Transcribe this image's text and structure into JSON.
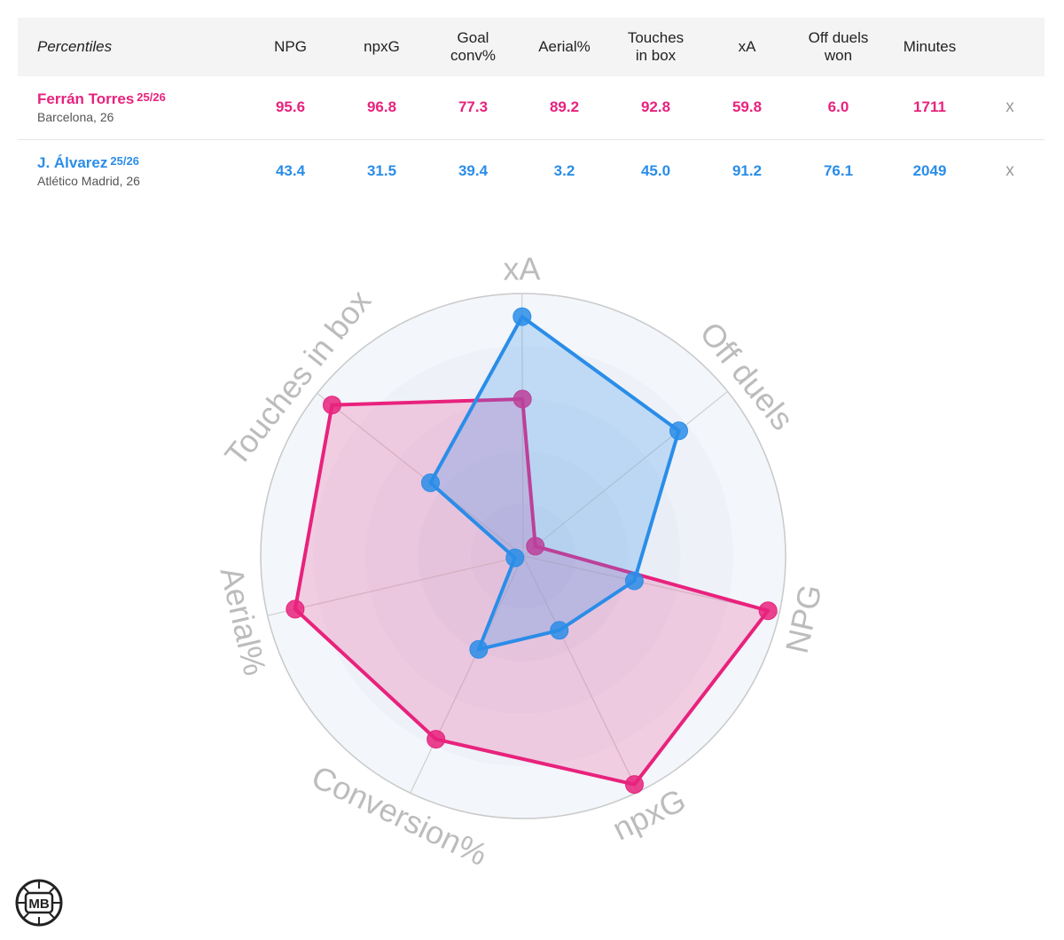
{
  "table": {
    "header_label": "Percentiles",
    "columns": [
      {
        "line1": "NPG",
        "line2": ""
      },
      {
        "line1": "npxG",
        "line2": ""
      },
      {
        "line1": "Goal",
        "line2": "conv%"
      },
      {
        "line1": "Aerial%",
        "line2": ""
      },
      {
        "line1": "Touches",
        "line2": "in box"
      },
      {
        "line1": "xA",
        "line2": ""
      },
      {
        "line1": "Off duels",
        "line2": "won"
      },
      {
        "line1": "Minutes",
        "line2": ""
      }
    ],
    "remove_label": "x"
  },
  "players": [
    {
      "name": "Ferrán Torres",
      "season": "25/26",
      "meta": "Barcelona, 26",
      "color": "#e8227d",
      "values": [
        "95.6",
        "96.8",
        "77.3",
        "89.2",
        "92.8",
        "59.8",
        "6.0",
        "1711"
      ]
    },
    {
      "name": "J. Álvarez",
      "season": "25/26",
      "meta": "Atlético Madrid, 26",
      "color": "#2a8de8",
      "values": [
        "43.4",
        "31.5",
        "39.4",
        "3.2",
        "45.0",
        "91.2",
        "76.1",
        "2049"
      ]
    }
  ],
  "chart_data": {
    "type": "radar",
    "axes": [
      "NPG",
      "npxG",
      "Conversion%",
      "Aerial%",
      "Touches in box",
      "xA",
      "Off duels"
    ],
    "range": [
      0,
      100
    ],
    "rings": 5,
    "series": [
      {
        "name": "Ferrán Torres",
        "color": "#e8227d",
        "values": [
          95.6,
          96.8,
          77.3,
          89.2,
          92.8,
          59.8,
          6.0
        ]
      },
      {
        "name": "J. Álvarez",
        "color": "#2a8de8",
        "values": [
          43.4,
          31.5,
          39.4,
          3.2,
          45.0,
          91.2,
          76.1
        ]
      }
    ]
  },
  "logo": {
    "text": "MB"
  }
}
